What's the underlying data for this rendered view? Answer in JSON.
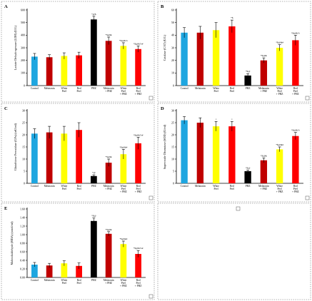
{
  "chart_data": [
    {
      "type": "bar",
      "panel": "A",
      "ylabel": "Lactate Dehydrogenase (LDH) (U/L)",
      "ylim": [
        0,
        600
      ],
      "yticks": [
        "0",
        "100",
        "200",
        "300",
        "400",
        "500",
        "600"
      ],
      "categories": [
        "Control",
        "Melatonin",
        "White Peel",
        "Red Peel",
        "PHZ",
        "Melatonin + PHZ",
        "White Peel + PHZ",
        "Red Peel + PHZ"
      ],
      "values": [
        230,
        225,
        235,
        240,
        525,
        355,
        315,
        290
      ],
      "errors": [
        25,
        20,
        25,
        25,
        25,
        30,
        25,
        25
      ],
      "annotations": [
        "",
        "",
        "",
        "",
        "*@$",
        "*$@&",
        "*$@&%",
        "*$@&%#"
      ],
      "colors": [
        "#1ea6e0",
        "#c00000",
        "#ffff00",
        "#ff0000",
        "#000000",
        "#c00000",
        "#ffff00",
        "#ff0000"
      ]
    },
    {
      "type": "bar",
      "panel": "B",
      "ylabel": "Catalase (CAT) (U/L)",
      "ylim": [
        0,
        60
      ],
      "yticks": [
        "0",
        "10",
        "20",
        "30",
        "40",
        "50",
        "60"
      ],
      "categories": [
        "Control",
        "Melatonin",
        "White Peel",
        "Red Peel",
        "PHZ",
        "Melatonin + PHZ",
        "White Peel + PHZ",
        "Red Peel + PHZ"
      ],
      "values": [
        42,
        42,
        44,
        47,
        8,
        20,
        30,
        36
      ],
      "errors": [
        4,
        5,
        6,
        5,
        1.5,
        2,
        2.5,
        4
      ],
      "annotations": [
        "",
        "",
        "",
        "*$",
        "*$@",
        "*$@&",
        "*$@&#",
        "*$@&%"
      ],
      "colors": [
        "#1ea6e0",
        "#c00000",
        "#ffff00",
        "#ff0000",
        "#000000",
        "#c00000",
        "#ffff00",
        "#ff0000"
      ]
    },
    {
      "type": "bar",
      "panel": "C",
      "ylabel": "Glutathione Peroxidase (GPx) (mU/ml)",
      "ylim": [
        0,
        30
      ],
      "yticks": [
        "0",
        "5",
        "10",
        "15",
        "20",
        "25",
        "30"
      ],
      "categories": [
        "Control",
        "Melatonin",
        "White Peel",
        "Red Peel",
        "PHZ",
        "Melatonin + PHZ",
        "White Peel + PHZ",
        "Red Peel + PHZ"
      ],
      "values": [
        20.5,
        21,
        20.5,
        22,
        3,
        8.5,
        12,
        16.5
      ],
      "errors": [
        2,
        2.5,
        3,
        3,
        0.5,
        1.5,
        2,
        2.5
      ],
      "annotations": [
        "",
        "",
        "",
        "",
        "*@",
        "*$@&",
        "*$@&#",
        "*$@&%#"
      ],
      "colors": [
        "#1ea6e0",
        "#c00000",
        "#ffff00",
        "#ff0000",
        "#000000",
        "#c00000",
        "#ffff00",
        "#ff0000"
      ]
    },
    {
      "type": "bar",
      "panel": "D",
      "ylabel": "Superoxide Dismutase (SOD) (U/ml)",
      "ylim": [
        0,
        30
      ],
      "yticks": [
        "0",
        "5",
        "10",
        "15",
        "20",
        "25",
        "30"
      ],
      "categories": [
        "Control",
        "Melatonin",
        "White Peel",
        "Red Peel",
        "PHZ",
        "Melatonin + PHZ",
        "White Peel + PHZ",
        "Red Peel + PHZ"
      ],
      "values": [
        26,
        25,
        23.5,
        23.5,
        5,
        9.5,
        14,
        19.5
      ],
      "errors": [
        1.5,
        2,
        2,
        2,
        0.5,
        1,
        1,
        1.5
      ],
      "annotations": [
        "",
        "",
        "*",
        "*",
        "*$@",
        "*$@&",
        "*$@&#",
        "*$@&%"
      ],
      "colors": [
        "#1ea6e0",
        "#c00000",
        "#ffff00",
        "#ff0000",
        "#000000",
        "#c00000",
        "#ffff00",
        "#ff0000"
      ]
    },
    {
      "type": "bar",
      "panel": "E",
      "ylabel": "Malondialdehyde (MDA) (nmol/ml)",
      "ylim": [
        0,
        1.6
      ],
      "yticks": [
        "0.00",
        "0.20",
        "0.40",
        "0.60",
        "0.80",
        "1.00",
        "1.20",
        "1.40",
        "1.60"
      ],
      "categories": [
        "Control",
        "Melatonin",
        "White Peel",
        "Red Peel",
        "PHZ",
        "Melatonin + PHZ",
        "White Peel + PHZ",
        "Red Peel + PHZ"
      ],
      "values": [
        0.3,
        0.28,
        0.33,
        0.27,
        1.32,
        1.02,
        0.78,
        0.55
      ],
      "errors": [
        0.05,
        0.05,
        0.06,
        0.07,
        0.07,
        0.05,
        0.07,
        0.08
      ],
      "annotations": [
        "",
        "",
        "",
        "",
        "*$@",
        "*$@&",
        "*$@&#",
        "*$@&%#"
      ],
      "colors": [
        "#1ea6e0",
        "#c00000",
        "#ffff00",
        "#ff0000",
        "#000000",
        "#c00000",
        "#ffff00",
        "#ff0000"
      ]
    }
  ]
}
